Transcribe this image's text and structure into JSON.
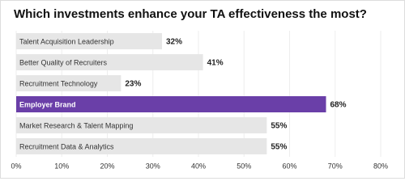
{
  "chart_data": {
    "type": "hbar",
    "title": "Which investments enhance your TA effectiveness the most?",
    "categories": [
      "Talent Acquisition Leadership",
      "Better Quality of Recruiters",
      "Recruitment Technology",
      "Employer Brand",
      "Market Research & Talent Mapping",
      "Recruitment Data & Analytics"
    ],
    "values": [
      32,
      41,
      23,
      68,
      55,
      55
    ],
    "value_labels": [
      "32%",
      "41%",
      "23%",
      "68%",
      "55%",
      "55%"
    ],
    "colors": [
      "#e6e6e6",
      "#e6e6e6",
      "#e6e6e6",
      "#6a3fa8",
      "#e6e6e6",
      "#e6e6e6"
    ],
    "xlim": [
      0,
      80
    ],
    "xticks": [
      {
        "value": 0,
        "label": "0%"
      },
      {
        "value": 10,
        "label": "10%"
      },
      {
        "value": 20,
        "label": "20%"
      },
      {
        "value": 30,
        "label": "30%"
      },
      {
        "value": 40,
        "label": "40%"
      },
      {
        "value": 50,
        "label": "50%"
      },
      {
        "value": 60,
        "label": "60%"
      },
      {
        "value": 70,
        "label": "70%"
      },
      {
        "value": 80,
        "label": "80%"
      }
    ],
    "grid": true
  }
}
